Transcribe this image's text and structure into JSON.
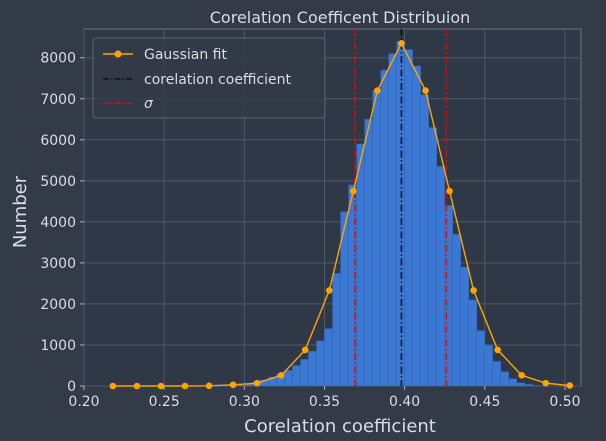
{
  "chart_data": {
    "type": "bar",
    "title": "Corelation Coefficent Distribuion",
    "xlabel": "Corelation coefficient",
    "ylabel": "Number",
    "xlim": [
      0.2,
      0.51
    ],
    "ylim": [
      0,
      8700
    ],
    "xticks": [
      "0.20",
      "0.25",
      "0.30",
      "0.35",
      "0.40",
      "0.45",
      "0.50"
    ],
    "xtick_values": [
      0.2,
      0.25,
      0.3,
      0.35,
      0.4,
      0.45,
      0.5
    ],
    "yticks": [
      "0",
      "1000",
      "2000",
      "3000",
      "4000",
      "5000",
      "6000",
      "7000",
      "8000"
    ],
    "ytick_values": [
      0,
      1000,
      2000,
      3000,
      4000,
      5000,
      6000,
      7000,
      8000
    ],
    "grid": true,
    "legend_position": "top-left",
    "histogram": {
      "bin_edges": [
        0.28,
        0.285,
        0.29,
        0.295,
        0.3,
        0.305,
        0.31,
        0.315,
        0.32,
        0.325,
        0.33,
        0.335,
        0.34,
        0.345,
        0.35,
        0.355,
        0.36,
        0.365,
        0.37,
        0.375,
        0.38,
        0.385,
        0.39,
        0.395,
        0.4,
        0.405,
        0.41,
        0.415,
        0.42,
        0.425,
        0.43,
        0.435,
        0.44,
        0.445,
        0.45,
        0.455,
        0.46,
        0.465,
        0.47,
        0.475,
        0.48,
        0.485,
        0.49
      ],
      "counts": [
        5,
        10,
        20,
        40,
        60,
        100,
        150,
        220,
        300,
        380,
        500,
        650,
        850,
        1100,
        1400,
        2750,
        4250,
        4900,
        5900,
        6500,
        7200,
        7700,
        8100,
        8400,
        8200,
        7800,
        7100,
        6300,
        5350,
        4400,
        3700,
        2900,
        2100,
        1350,
        1000,
        600,
        350,
        180,
        80,
        40,
        15,
        5
      ],
      "color": "#3b78d4"
    },
    "series": [
      {
        "name": "Gaussian fit",
        "kind": "line",
        "color": "#ffa500",
        "x": [
          0.218,
          0.233,
          0.248,
          0.263,
          0.278,
          0.293,
          0.308,
          0.323,
          0.338,
          0.353,
          0.368,
          0.383,
          0.398,
          0.413,
          0.428,
          0.443,
          0.458,
          0.473,
          0.488,
          0.503
        ],
        "y": [
          0,
          0,
          0,
          0,
          5,
          30,
          70,
          260,
          880,
          2330,
          4750,
          7200,
          8350,
          7200,
          4750,
          2330,
          880,
          260,
          70,
          10
        ]
      },
      {
        "name": "corelation coefficient",
        "kind": "vline",
        "color": "#111111",
        "x": 0.398
      },
      {
        "name": "σ",
        "kind": "vline-pair",
        "color": "#cc1111",
        "x": [
          0.369,
          0.426
        ]
      }
    ]
  }
}
